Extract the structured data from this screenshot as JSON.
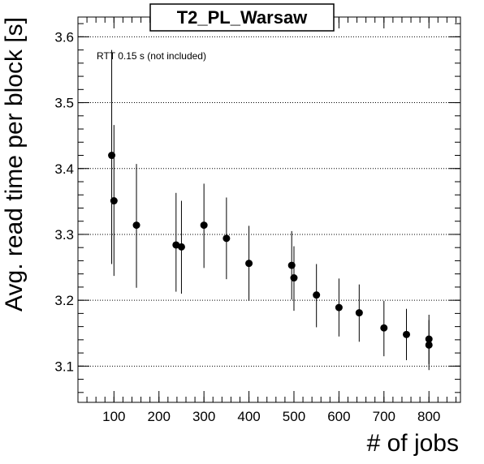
{
  "chart_data": {
    "type": "scatter",
    "title": "T2_PL_Warsaw",
    "xlabel": "# of jobs",
    "ylabel": "Avg. read time per block [s]",
    "annotation": "RTT 0.15 s (not included)",
    "xlim": [
      20,
      870
    ],
    "ylim": [
      3.045,
      3.63
    ],
    "x_ticks": [
      100,
      200,
      300,
      400,
      500,
      600,
      700,
      800
    ],
    "y_ticks": [
      3.1,
      3.2,
      3.3,
      3.4,
      3.5,
      3.6
    ],
    "grid": {
      "horizontal": true,
      "vertical": false,
      "style": "dotted"
    },
    "series": [
      {
        "marker": "circle",
        "color": "#000000",
        "points": [
          {
            "x": 95,
            "y": 3.42,
            "yerr_low": 3.255,
            "yerr_high": 3.58
          },
          {
            "x": 100,
            "y": 3.351,
            "yerr_low": 3.237,
            "yerr_high": 3.466
          },
          {
            "x": 150,
            "y": 3.314,
            "yerr_low": 3.219,
            "yerr_high": 3.407
          },
          {
            "x": 238,
            "y": 3.284,
            "yerr_low": 3.213,
            "yerr_high": 3.363
          },
          {
            "x": 250,
            "y": 3.281,
            "yerr_low": 3.21,
            "yerr_high": 3.351
          },
          {
            "x": 300,
            "y": 3.314,
            "yerr_low": 3.249,
            "yerr_high": 3.377
          },
          {
            "x": 350,
            "y": 3.294,
            "yerr_low": 3.232,
            "yerr_high": 3.356
          },
          {
            "x": 400,
            "y": 3.256,
            "yerr_low": 3.199,
            "yerr_high": 3.313
          },
          {
            "x": 495,
            "y": 3.253,
            "yerr_low": 3.201,
            "yerr_high": 3.305
          },
          {
            "x": 500,
            "y": 3.234,
            "yerr_low": 3.184,
            "yerr_high": 3.282
          },
          {
            "x": 550,
            "y": 3.208,
            "yerr_low": 3.159,
            "yerr_high": 3.255
          },
          {
            "x": 600,
            "y": 3.189,
            "yerr_low": 3.145,
            "yerr_high": 3.233
          },
          {
            "x": 645,
            "y": 3.181,
            "yerr_low": 3.137,
            "yerr_high": 3.224
          },
          {
            "x": 700,
            "y": 3.158,
            "yerr_low": 3.115,
            "yerr_high": 3.199
          },
          {
            "x": 750,
            "y": 3.148,
            "yerr_low": 3.109,
            "yerr_high": 3.187
          },
          {
            "x": 800,
            "y": 3.141,
            "yerr_low": 3.103,
            "yerr_high": 3.178
          },
          {
            "x": 800,
            "y": 3.132,
            "yerr_low": 3.094,
            "yerr_high": 3.17
          }
        ]
      }
    ]
  }
}
